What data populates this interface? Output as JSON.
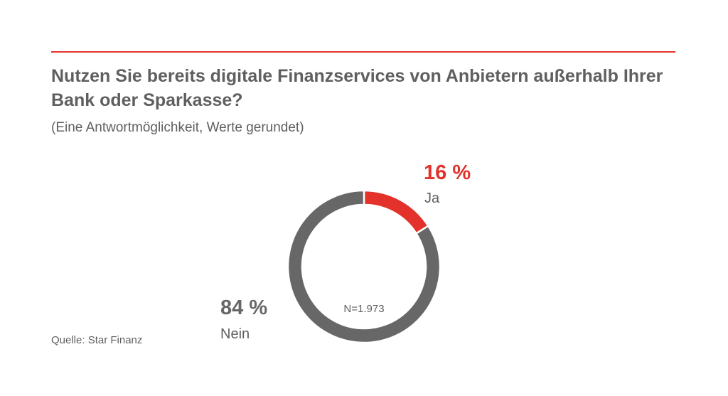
{
  "chart_data": {
    "type": "pie",
    "title": "Nutzen Sie bereits digitale Finanzservices von Anbietern außerhalb Ihrer Bank oder Sparkasse?",
    "subtitle": "(Eine Antwortmöglichkeit, Werte gerundet)",
    "center_label": "N=1.973",
    "source": "Quelle: Star Finanz",
    "slices": [
      {
        "label": "Ja",
        "value": 16,
        "value_label": "16 %",
        "color": "#e2322b"
      },
      {
        "label": "Nein",
        "value": 84,
        "value_label": "84 %",
        "color": "#676767"
      }
    ]
  },
  "colors": {
    "accent": "#e2322b",
    "text": "#5f5f5f",
    "donut_gray": "#676767"
  }
}
